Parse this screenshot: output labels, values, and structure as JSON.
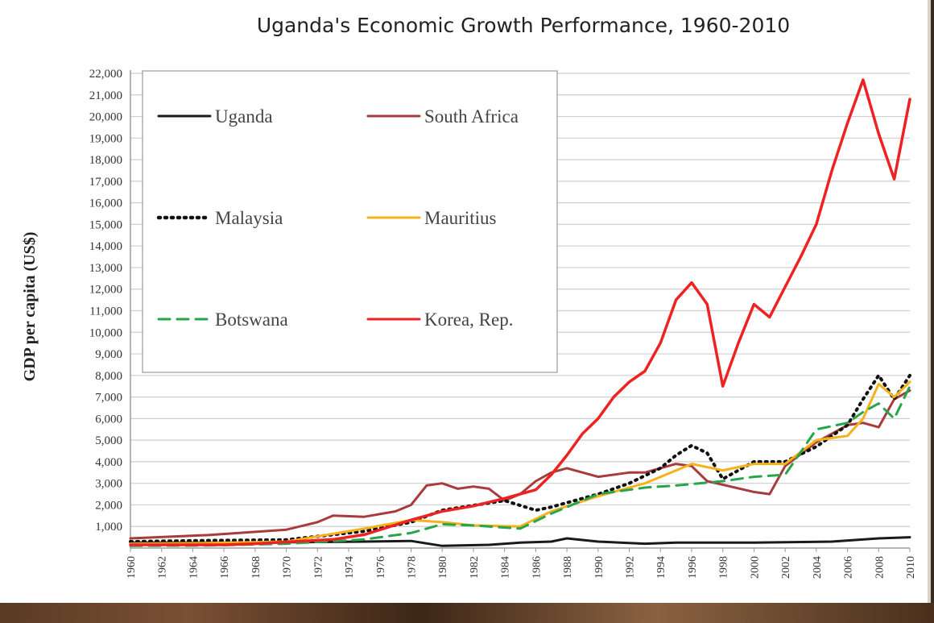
{
  "chart_data": {
    "type": "line",
    "title": "Uganda's  Economic  Growth Performance,  1960-2010",
    "ylabel": "GDP per capita (US$)",
    "xlabel": "",
    "ylim": [
      0,
      22000
    ],
    "xlim": [
      1960,
      2010
    ],
    "grid": true,
    "legend_position": "top-left",
    "y_ticks": [
      {
        "value": 1000,
        "label": "1,000"
      },
      {
        "value": 2000,
        "label": "2,000"
      },
      {
        "value": 3000,
        "label": "3,000"
      },
      {
        "value": 4000,
        "label": "4,000"
      },
      {
        "value": 5000,
        "label": "5,000"
      },
      {
        "value": 6000,
        "label": "6,000"
      },
      {
        "value": 7000,
        "label": "7,000"
      },
      {
        "value": 8000,
        "label": "8,000"
      },
      {
        "value": 9000,
        "label": "9,000"
      },
      {
        "value": 10000,
        "label": "10,000"
      },
      {
        "value": 11000,
        "label": "11,000"
      },
      {
        "value": 12000,
        "label": "12,000"
      },
      {
        "value": 13000,
        "label": "13,000"
      },
      {
        "value": 14000,
        "label": "14,000"
      },
      {
        "value": 15000,
        "label": "15,000"
      },
      {
        "value": 16000,
        "label": "16,000"
      },
      {
        "value": 17000,
        "label": "17,000"
      },
      {
        "value": 18000,
        "label": "18,000"
      },
      {
        "value": 19000,
        "label": "19,000"
      },
      {
        "value": 20000,
        "label": "20,000"
      },
      {
        "value": 21000,
        "label": "21,000"
      },
      {
        "value": 22000,
        "label": "22,000"
      }
    ],
    "x_ticks": [
      {
        "value": 1960,
        "label": "1960"
      },
      {
        "value": 1962,
        "label": "1962"
      },
      {
        "value": 1964,
        "label": "1964"
      },
      {
        "value": 1966,
        "label": "1966"
      },
      {
        "value": 1968,
        "label": "1968"
      },
      {
        "value": 1970,
        "label": "1970"
      },
      {
        "value": 1972,
        "label": "1972"
      },
      {
        "value": 1974,
        "label": "1974"
      },
      {
        "value": 1976,
        "label": "1976"
      },
      {
        "value": 1978,
        "label": "1978"
      },
      {
        "value": 1980,
        "label": "1980"
      },
      {
        "value": 1982,
        "label": "1982"
      },
      {
        "value": 1984,
        "label": "1984"
      },
      {
        "value": 1986,
        "label": "1986"
      },
      {
        "value": 1988,
        "label": "1988"
      },
      {
        "value": 1990,
        "label": "1990"
      },
      {
        "value": 1992,
        "label": "1992"
      },
      {
        "value": 1994,
        "label": "1994"
      },
      {
        "value": 1996,
        "label": "1996"
      },
      {
        "value": 1998,
        "label": "1998"
      },
      {
        "value": 2000,
        "label": "2000"
      },
      {
        "value": 2002,
        "label": "2002"
      },
      {
        "value": 2004,
        "label": "2004"
      },
      {
        "value": 2006,
        "label": "2006"
      },
      {
        "value": 2008,
        "label": "2008"
      },
      {
        "value": 2010,
        "label": "2010"
      }
    ],
    "series": [
      {
        "name": "Uganda",
        "color": "#1a1a1a",
        "style": "solid",
        "x": [
          1960,
          1965,
          1970,
          1975,
          1978,
          1980,
          1983,
          1985,
          1987,
          1988,
          1990,
          1993,
          1995,
          2000,
          2005,
          2008,
          2010
        ],
        "y": [
          250,
          250,
          270,
          300,
          330,
          100,
          150,
          250,
          300,
          450,
          300,
          200,
          250,
          250,
          300,
          450,
          500
        ]
      },
      {
        "name": "South Africa",
        "color": "#a83c3c",
        "style": "solid",
        "x": [
          1960,
          1965,
          1970,
          1972,
          1973,
          1975,
          1977,
          1978,
          1979,
          1980,
          1981,
          1982,
          1983,
          1984,
          1985,
          1986,
          1987,
          1988,
          1990,
          1992,
          1993,
          1995,
          1996,
          1997,
          2000,
          2001,
          2002,
          2004,
          2006,
          2007,
          2008,
          2009,
          2010
        ],
        "y": [
          450,
          600,
          850,
          1200,
          1500,
          1450,
          1700,
          2000,
          2900,
          3000,
          2750,
          2850,
          2750,
          2200,
          2500,
          3100,
          3500,
          3700,
          3300,
          3500,
          3500,
          3900,
          3800,
          3100,
          2600,
          2500,
          3800,
          4900,
          5700,
          5800,
          5600,
          6900,
          7300
        ]
      },
      {
        "name": "Malaysia",
        "color": "#111111",
        "style": "dotted",
        "x": [
          1960,
          1965,
          1970,
          1975,
          1978,
          1980,
          1984,
          1986,
          1987,
          1990,
          1992,
          1994,
          1995,
          1996,
          1997,
          1998,
          2000,
          2002,
          2004,
          2006,
          2007,
          2008,
          2009,
          2010
        ],
        "y": [
          300,
          350,
          380,
          780,
          1200,
          1750,
          2200,
          1750,
          1900,
          2500,
          3000,
          3700,
          4300,
          4750,
          4400,
          3200,
          4000,
          4000,
          4700,
          5700,
          6900,
          8000,
          6900,
          8000
        ]
      },
      {
        "name": "Mauritius",
        "color": "#f5b21a",
        "style": "solid",
        "x": [
          1960,
          1965,
          1970,
          1975,
          1978,
          1980,
          1982,
          1985,
          1987,
          1990,
          1993,
          1996,
          1998,
          2000,
          2002,
          2004,
          2006,
          2007,
          2008,
          2009,
          2010
        ],
        "y": [
          200,
          230,
          300,
          900,
          1300,
          1200,
          1050,
          1000,
          1700,
          2400,
          3000,
          3900,
          3600,
          3900,
          3900,
          5000,
          5200,
          6000,
          7600,
          7000,
          7700
        ]
      },
      {
        "name": "Botswana",
        "color": "#27a54a",
        "style": "dashed",
        "x": [
          1960,
          1965,
          1970,
          1975,
          1978,
          1980,
          1982,
          1985,
          1987,
          1990,
          1993,
          1995,
          1998,
          2000,
          2002,
          2004,
          2006,
          2007,
          2008,
          2009,
          2010
        ],
        "y": [
          100,
          120,
          200,
          400,
          700,
          1100,
          1050,
          900,
          1600,
          2500,
          2800,
          2900,
          3100,
          3300,
          3400,
          5500,
          5800,
          6300,
          6700,
          6000,
          7500
        ]
      },
      {
        "name": "Korea, Rep.",
        "color": "#ee2222",
        "style": "solid",
        "x": [
          1960,
          1963,
          1966,
          1968,
          1970,
          1973,
          1975,
          1978,
          1980,
          1982,
          1984,
          1986,
          1987,
          1988,
          1989,
          1990,
          1991,
          1992,
          1993,
          1994,
          1995,
          1996,
          1997,
          1998,
          1999,
          2000,
          2001,
          2002,
          2003,
          2004,
          2005,
          2006,
          2007,
          2008,
          2009,
          2010
        ],
        "y": [
          150,
          150,
          150,
          200,
          280,
          400,
          620,
          1300,
          1700,
          1950,
          2300,
          2700,
          3400,
          4300,
          5300,
          6000,
          7000,
          7700,
          8200,
          9500,
          11500,
          12300,
          11300,
          7500,
          9500,
          11300,
          10700,
          12100,
          13500,
          15000,
          17500,
          19700,
          21700,
          19200,
          17100,
          20800
        ]
      }
    ]
  }
}
